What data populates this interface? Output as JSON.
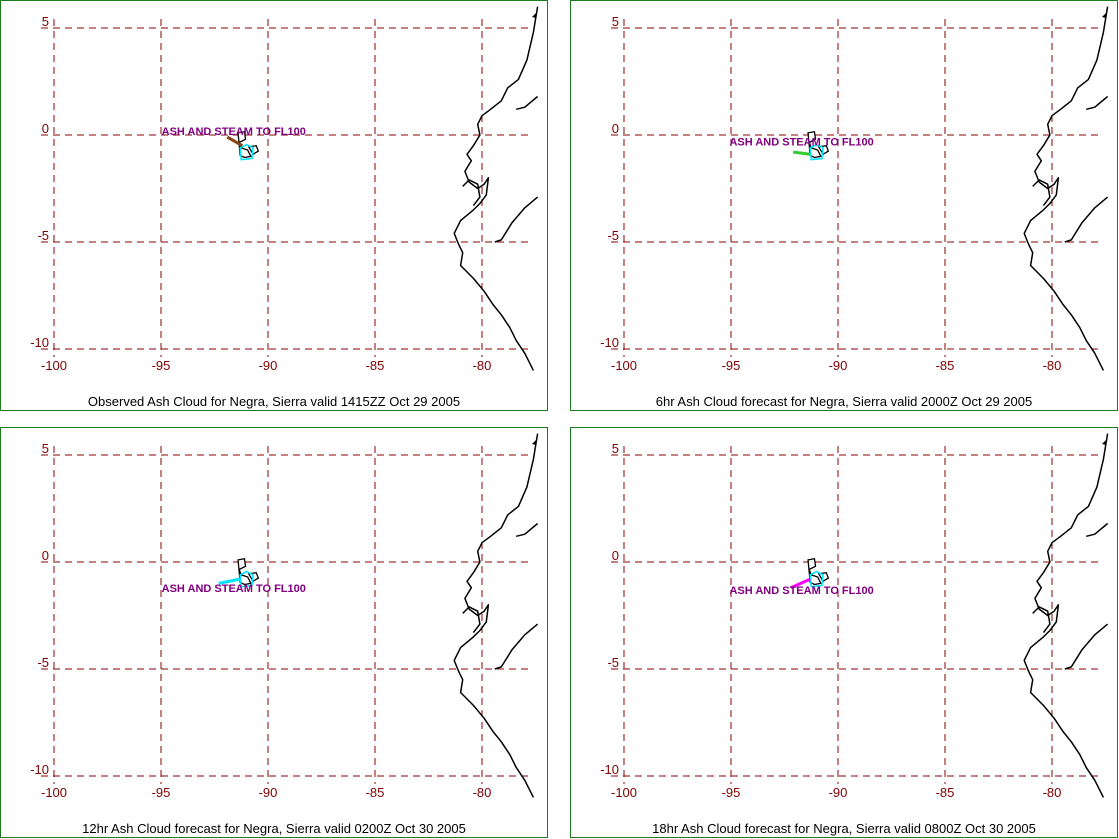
{
  "colors": {
    "grid": "#8b0000",
    "tick": "#800000",
    "coast": "#000000",
    "annotation": "#800080",
    "border": "#1e7a1e",
    "outline": "#00e5ff"
  },
  "axes": {
    "lon_ticks": [
      -100,
      -95,
      -90,
      -85,
      -80
    ],
    "lat_ticks": [
      5,
      0,
      -5,
      -10
    ]
  },
  "panels": [
    {
      "caption": "Observed Ash Cloud for Negra,  Sierra valid 1415ZZ Oct 29 2005",
      "annotation": "ASH AND STEAM TO FL100",
      "annotation_lon": -91.6,
      "annotation_lat": 0.0,
      "plume_color": "#8b4513",
      "plume": [
        [
          -91.9,
          -0.1
        ],
        [
          -91.2,
          -0.5
        ]
      ]
    },
    {
      "caption": "6hr Ash Cloud forecast for Negra,  Sierra valid 2000Z Oct 29 2005",
      "annotation": "ASH AND STEAM TO FL100",
      "annotation_lon": -91.7,
      "annotation_lat": -0.5,
      "plume_color": "#32cd32",
      "plume": [
        [
          -92.1,
          -0.8
        ],
        [
          -91.3,
          -0.9
        ]
      ]
    },
    {
      "caption": "12hr Ash Cloud forecast for Negra,  Sierra valid 0200Z Oct 30 2005",
      "annotation": "ASH AND STEAM TO FL100",
      "annotation_lon": -91.6,
      "annotation_lat": -1.4,
      "plume_color": "#00e5ff",
      "plume": [
        [
          -92.3,
          -1.0
        ],
        [
          -91.3,
          -0.8
        ]
      ]
    },
    {
      "caption": "18hr Ash Cloud forecast for Negra,  Sierra valid 0800Z Oct 30 2005",
      "annotation": "ASH AND STEAM TO FL100",
      "annotation_lon": -91.7,
      "annotation_lat": -1.5,
      "plume_color": "#ff00ff",
      "plume": [
        [
          -92.2,
          -1.2
        ],
        [
          -91.3,
          -0.8
        ]
      ]
    }
  ],
  "coastline": [
    [
      -77.4,
      6.0
    ],
    [
      -77.6,
      4.8
    ],
    [
      -77.9,
      3.5
    ],
    [
      -78.3,
      2.6
    ],
    [
      -78.8,
      2.2
    ],
    [
      -79.1,
      1.6
    ],
    [
      -79.6,
      1.2
    ],
    [
      -80.0,
      0.9
    ],
    [
      -80.2,
      0.5
    ],
    [
      -80.1,
      0.0
    ],
    [
      -80.4,
      -0.5
    ],
    [
      -80.7,
      -0.9
    ],
    [
      -80.5,
      -1.2
    ],
    [
      -80.8,
      -1.7
    ],
    [
      -80.6,
      -2.2
    ],
    [
      -80.2,
      -2.5
    ],
    [
      -79.9,
      -2.3
    ],
    [
      -79.7,
      -2.0
    ],
    [
      -79.8,
      -2.8
    ],
    [
      -80.1,
      -3.2
    ],
    [
      -80.4,
      -3.5
    ],
    [
      -81.0,
      -4.0
    ],
    [
      -81.3,
      -4.6
    ],
    [
      -81.1,
      -5.1
    ],
    [
      -80.9,
      -5.5
    ],
    [
      -81.0,
      -6.1
    ],
    [
      -80.4,
      -6.7
    ],
    [
      -79.9,
      -7.3
    ],
    [
      -79.5,
      -7.9
    ],
    [
      -79.1,
      -8.4
    ],
    [
      -78.7,
      -9.0
    ],
    [
      -78.4,
      -9.6
    ],
    [
      -78.0,
      -10.2
    ],
    [
      -77.6,
      -11.0
    ]
  ],
  "coastline_gulf": [
    [
      -80.9,
      -2.4
    ],
    [
      -80.6,
      -2.1
    ],
    [
      -80.2,
      -2.3
    ],
    [
      -80.1,
      -2.9
    ],
    [
      -80.4,
      -3.3
    ]
  ],
  "coastline_inner": [
    [
      -77.4,
      1.8
    ],
    [
      -78.0,
      1.3
    ],
    [
      -78.4,
      1.2
    ]
  ],
  "coastline_south": [
    [
      -77.4,
      -2.9
    ],
    [
      -78.0,
      -3.4
    ],
    [
      -78.6,
      -4.1
    ],
    [
      -79.1,
      -4.9
    ],
    [
      -79.4,
      -5.0
    ]
  ]
}
